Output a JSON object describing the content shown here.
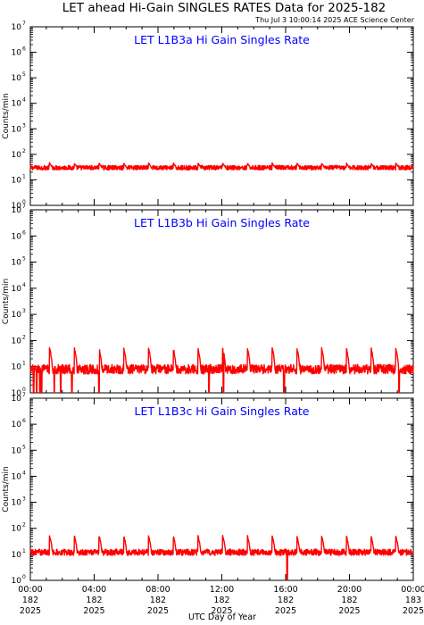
{
  "header": {
    "title": "LET ahead Hi-Gain SINGLES RATES Data for 2025-182",
    "timestamp": "Thu Jul  3 10:00:14 2025 ACE Science Center"
  },
  "colors": {
    "series": "#ff0000",
    "panel_title": "#0000ff",
    "axes": "#000000",
    "background": "#ffffff"
  },
  "chart_data": [
    {
      "type": "line",
      "title": "LET L1B3a Hi Gain Singles Rate",
      "xlabel": "",
      "ylabel": "Counts/min",
      "yscale": "log",
      "ylim": [
        1,
        10000000
      ],
      "yticks": [
        {
          "base": "10",
          "exp": "0"
        },
        {
          "base": "10",
          "exp": "1"
        },
        {
          "base": "10",
          "exp": "2"
        },
        {
          "base": "10",
          "exp": "3"
        },
        {
          "base": "10",
          "exp": "4"
        },
        {
          "base": "10",
          "exp": "5"
        },
        {
          "base": "10",
          "exp": "6"
        },
        {
          "base": "10",
          "exp": "7"
        }
      ],
      "xlim": [
        0,
        24
      ],
      "series": [
        {
          "baseline": 30,
          "noise": 0.09,
          "spike_peak": 45,
          "spike_period_hours": 1.55,
          "dips": []
        }
      ]
    },
    {
      "type": "line",
      "title": "LET L1B3b Hi Gain Singles Rate",
      "xlabel": "",
      "ylabel": "Counts/min",
      "yscale": "log",
      "ylim": [
        1,
        10000000
      ],
      "yticks": [
        {
          "base": "10",
          "exp": "0"
        },
        {
          "base": "10",
          "exp": "1"
        },
        {
          "base": "10",
          "exp": "2"
        },
        {
          "base": "10",
          "exp": "3"
        },
        {
          "base": "10",
          "exp": "4"
        },
        {
          "base": "10",
          "exp": "5"
        },
        {
          "base": "10",
          "exp": "6"
        },
        {
          "base": "10",
          "exp": "7"
        }
      ],
      "xlim": [
        0,
        24
      ],
      "series": [
        {
          "baseline": 8,
          "noise": 0.18,
          "spike_peak": 50,
          "spike_period_hours": 1.55,
          "dips": [
            0.2,
            0.4,
            0.6,
            0.7,
            1.5,
            1.9,
            2.6,
            4.3,
            11.2,
            12.1,
            15.9,
            23.1
          ]
        }
      ]
    },
    {
      "type": "line",
      "title": "LET L1B3c Hi Gain Singles Rate",
      "xlabel": "UTC Day of Year",
      "ylabel": "Counts/min",
      "yscale": "log",
      "ylim": [
        1,
        10000000
      ],
      "yticks": [
        {
          "base": "10",
          "exp": "0"
        },
        {
          "base": "10",
          "exp": "1"
        },
        {
          "base": "10",
          "exp": "2"
        },
        {
          "base": "10",
          "exp": "3"
        },
        {
          "base": "10",
          "exp": "4"
        },
        {
          "base": "10",
          "exp": "5"
        },
        {
          "base": "10",
          "exp": "6"
        },
        {
          "base": "10",
          "exp": "7"
        }
      ],
      "xlim": [
        0,
        24
      ],
      "xticks": [
        {
          "hours": 0,
          "time": "00:00",
          "doy": "182",
          "year": "2025"
        },
        {
          "hours": 4,
          "time": "04:00",
          "doy": "182",
          "year": "2025"
        },
        {
          "hours": 8,
          "time": "08:00",
          "doy": "182",
          "year": "2025"
        },
        {
          "hours": 12,
          "time": "12:00",
          "doy": "182",
          "year": "2025"
        },
        {
          "hours": 16,
          "time": "16:00",
          "doy": "182",
          "year": "2025"
        },
        {
          "hours": 20,
          "time": "20:00",
          "doy": "182",
          "year": "2025"
        },
        {
          "hours": 24,
          "time": "00:00",
          "doy": "183",
          "year": "2025"
        }
      ],
      "series": [
        {
          "baseline": 12,
          "noise": 0.12,
          "spike_peak": 50,
          "spike_period_hours": 1.55,
          "dips": [
            16.1
          ]
        }
      ]
    }
  ]
}
